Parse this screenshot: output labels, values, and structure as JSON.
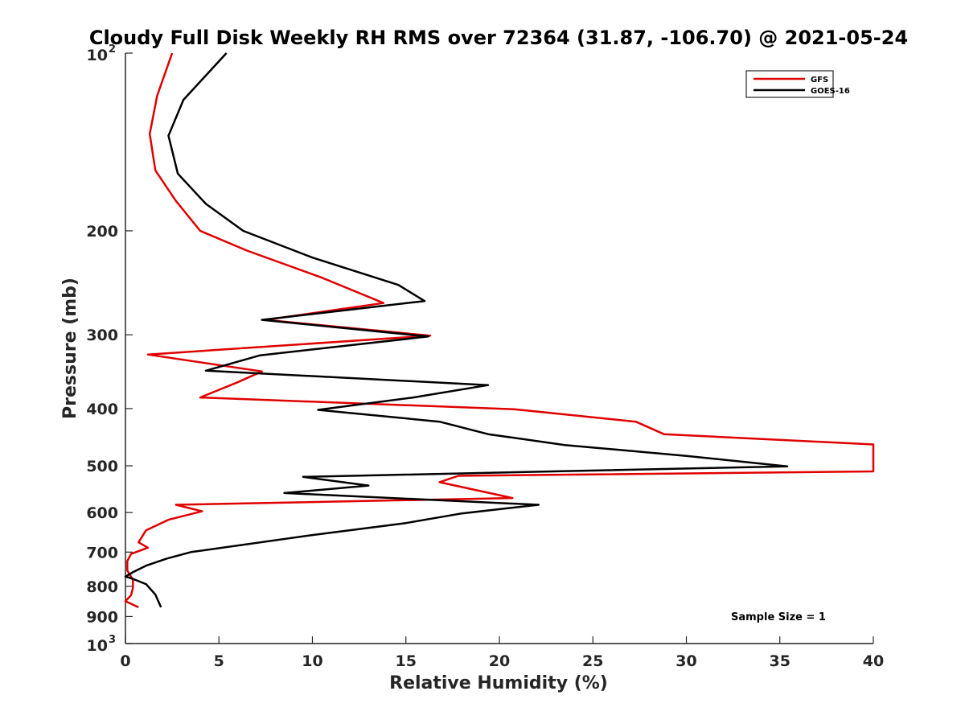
{
  "chart_data": {
    "type": "line",
    "title": "Cloudy Full Disk Weekly RH RMS over 72364 (31.87, -106.70) @ 2021-05-24",
    "xlabel": "Relative Humidity (%)",
    "ylabel": "Pressure (mb)",
    "xlim": [
      0,
      40
    ],
    "ylim": [
      100,
      1000
    ],
    "y_scale": "log",
    "y_reversed": true,
    "grid": false,
    "legend_position": "top-right",
    "x_ticks": [
      "0",
      "5",
      "10",
      "15",
      "20",
      "25",
      "30",
      "35",
      "40"
    ],
    "y_ticks": [
      {
        "value": 100,
        "base": "10",
        "exp": "2"
      },
      {
        "value": 200,
        "label": "200"
      },
      {
        "value": 300,
        "label": "300"
      },
      {
        "value": 400,
        "label": "400"
      },
      {
        "value": 500,
        "label": "500"
      },
      {
        "value": 600,
        "label": "600"
      },
      {
        "value": 700,
        "label": "700"
      },
      {
        "value": 800,
        "label": "800"
      },
      {
        "value": 900,
        "label": "900"
      },
      {
        "value": 1000,
        "base": "10",
        "exp": "3"
      }
    ],
    "annotation": "Sample Size = 1",
    "series": [
      {
        "name": "GFS",
        "color": "#e00000",
        "points": [
          [
            2.5,
            100
          ],
          [
            1.7,
            118
          ],
          [
            1.3,
            137
          ],
          [
            1.6,
            158
          ],
          [
            2.7,
            178
          ],
          [
            4.0,
            200
          ],
          [
            6.5,
            216
          ],
          [
            10.5,
            240
          ],
          [
            13.8,
            265
          ],
          [
            7.5,
            283
          ],
          [
            16.3,
            301
          ],
          [
            1.2,
            324
          ],
          [
            7.3,
            346
          ],
          [
            6.0,
            361
          ],
          [
            4.0,
            383
          ],
          [
            20.8,
            401
          ],
          [
            27.3,
            421
          ],
          [
            28.8,
            442
          ],
          [
            40.0,
            460
          ],
          [
            40.0,
            511
          ],
          [
            17.8,
            520
          ],
          [
            16.8,
            533
          ],
          [
            20.7,
            567
          ],
          [
            2.7,
            582
          ],
          [
            4.1,
            597
          ],
          [
            2.3,
            617
          ],
          [
            1.1,
            643
          ],
          [
            0.7,
            674
          ],
          [
            1.2,
            688
          ],
          [
            0.3,
            705
          ],
          [
            0.1,
            725
          ],
          [
            0.1,
            752
          ],
          [
            0.4,
            780
          ],
          [
            0.4,
            805
          ],
          [
            0.3,
            828
          ],
          [
            0.0,
            848
          ],
          [
            0.7,
            868
          ]
        ]
      },
      {
        "name": "GOES-16",
        "color": "#000000",
        "points": [
          [
            5.4,
            100
          ],
          [
            3.1,
            120
          ],
          [
            2.3,
            138
          ],
          [
            2.8,
            160
          ],
          [
            4.3,
            180
          ],
          [
            6.3,
            200
          ],
          [
            10.0,
            222
          ],
          [
            14.6,
            247
          ],
          [
            16.0,
            263
          ],
          [
            7.3,
            283
          ],
          [
            16.2,
            302
          ],
          [
            7.2,
            325
          ],
          [
            4.3,
            345
          ],
          [
            19.4,
            365
          ],
          [
            15.4,
            383
          ],
          [
            10.3,
            402
          ],
          [
            16.8,
            421
          ],
          [
            19.4,
            442
          ],
          [
            23.5,
            461
          ],
          [
            30.0,
            481
          ],
          [
            35.4,
            501
          ],
          [
            9.5,
            522
          ],
          [
            13.0,
            540
          ],
          [
            8.5,
            556
          ],
          [
            22.1,
            582
          ],
          [
            18.0,
            602
          ],
          [
            15.0,
            625
          ],
          [
            10.0,
            655
          ],
          [
            3.5,
            700
          ],
          [
            2.2,
            718
          ],
          [
            1.1,
            738
          ],
          [
            0.4,
            757
          ],
          [
            0.0,
            770
          ],
          [
            0.4,
            777
          ],
          [
            1.1,
            793
          ],
          [
            1.6,
            826
          ],
          [
            1.9,
            868
          ]
        ]
      }
    ]
  }
}
